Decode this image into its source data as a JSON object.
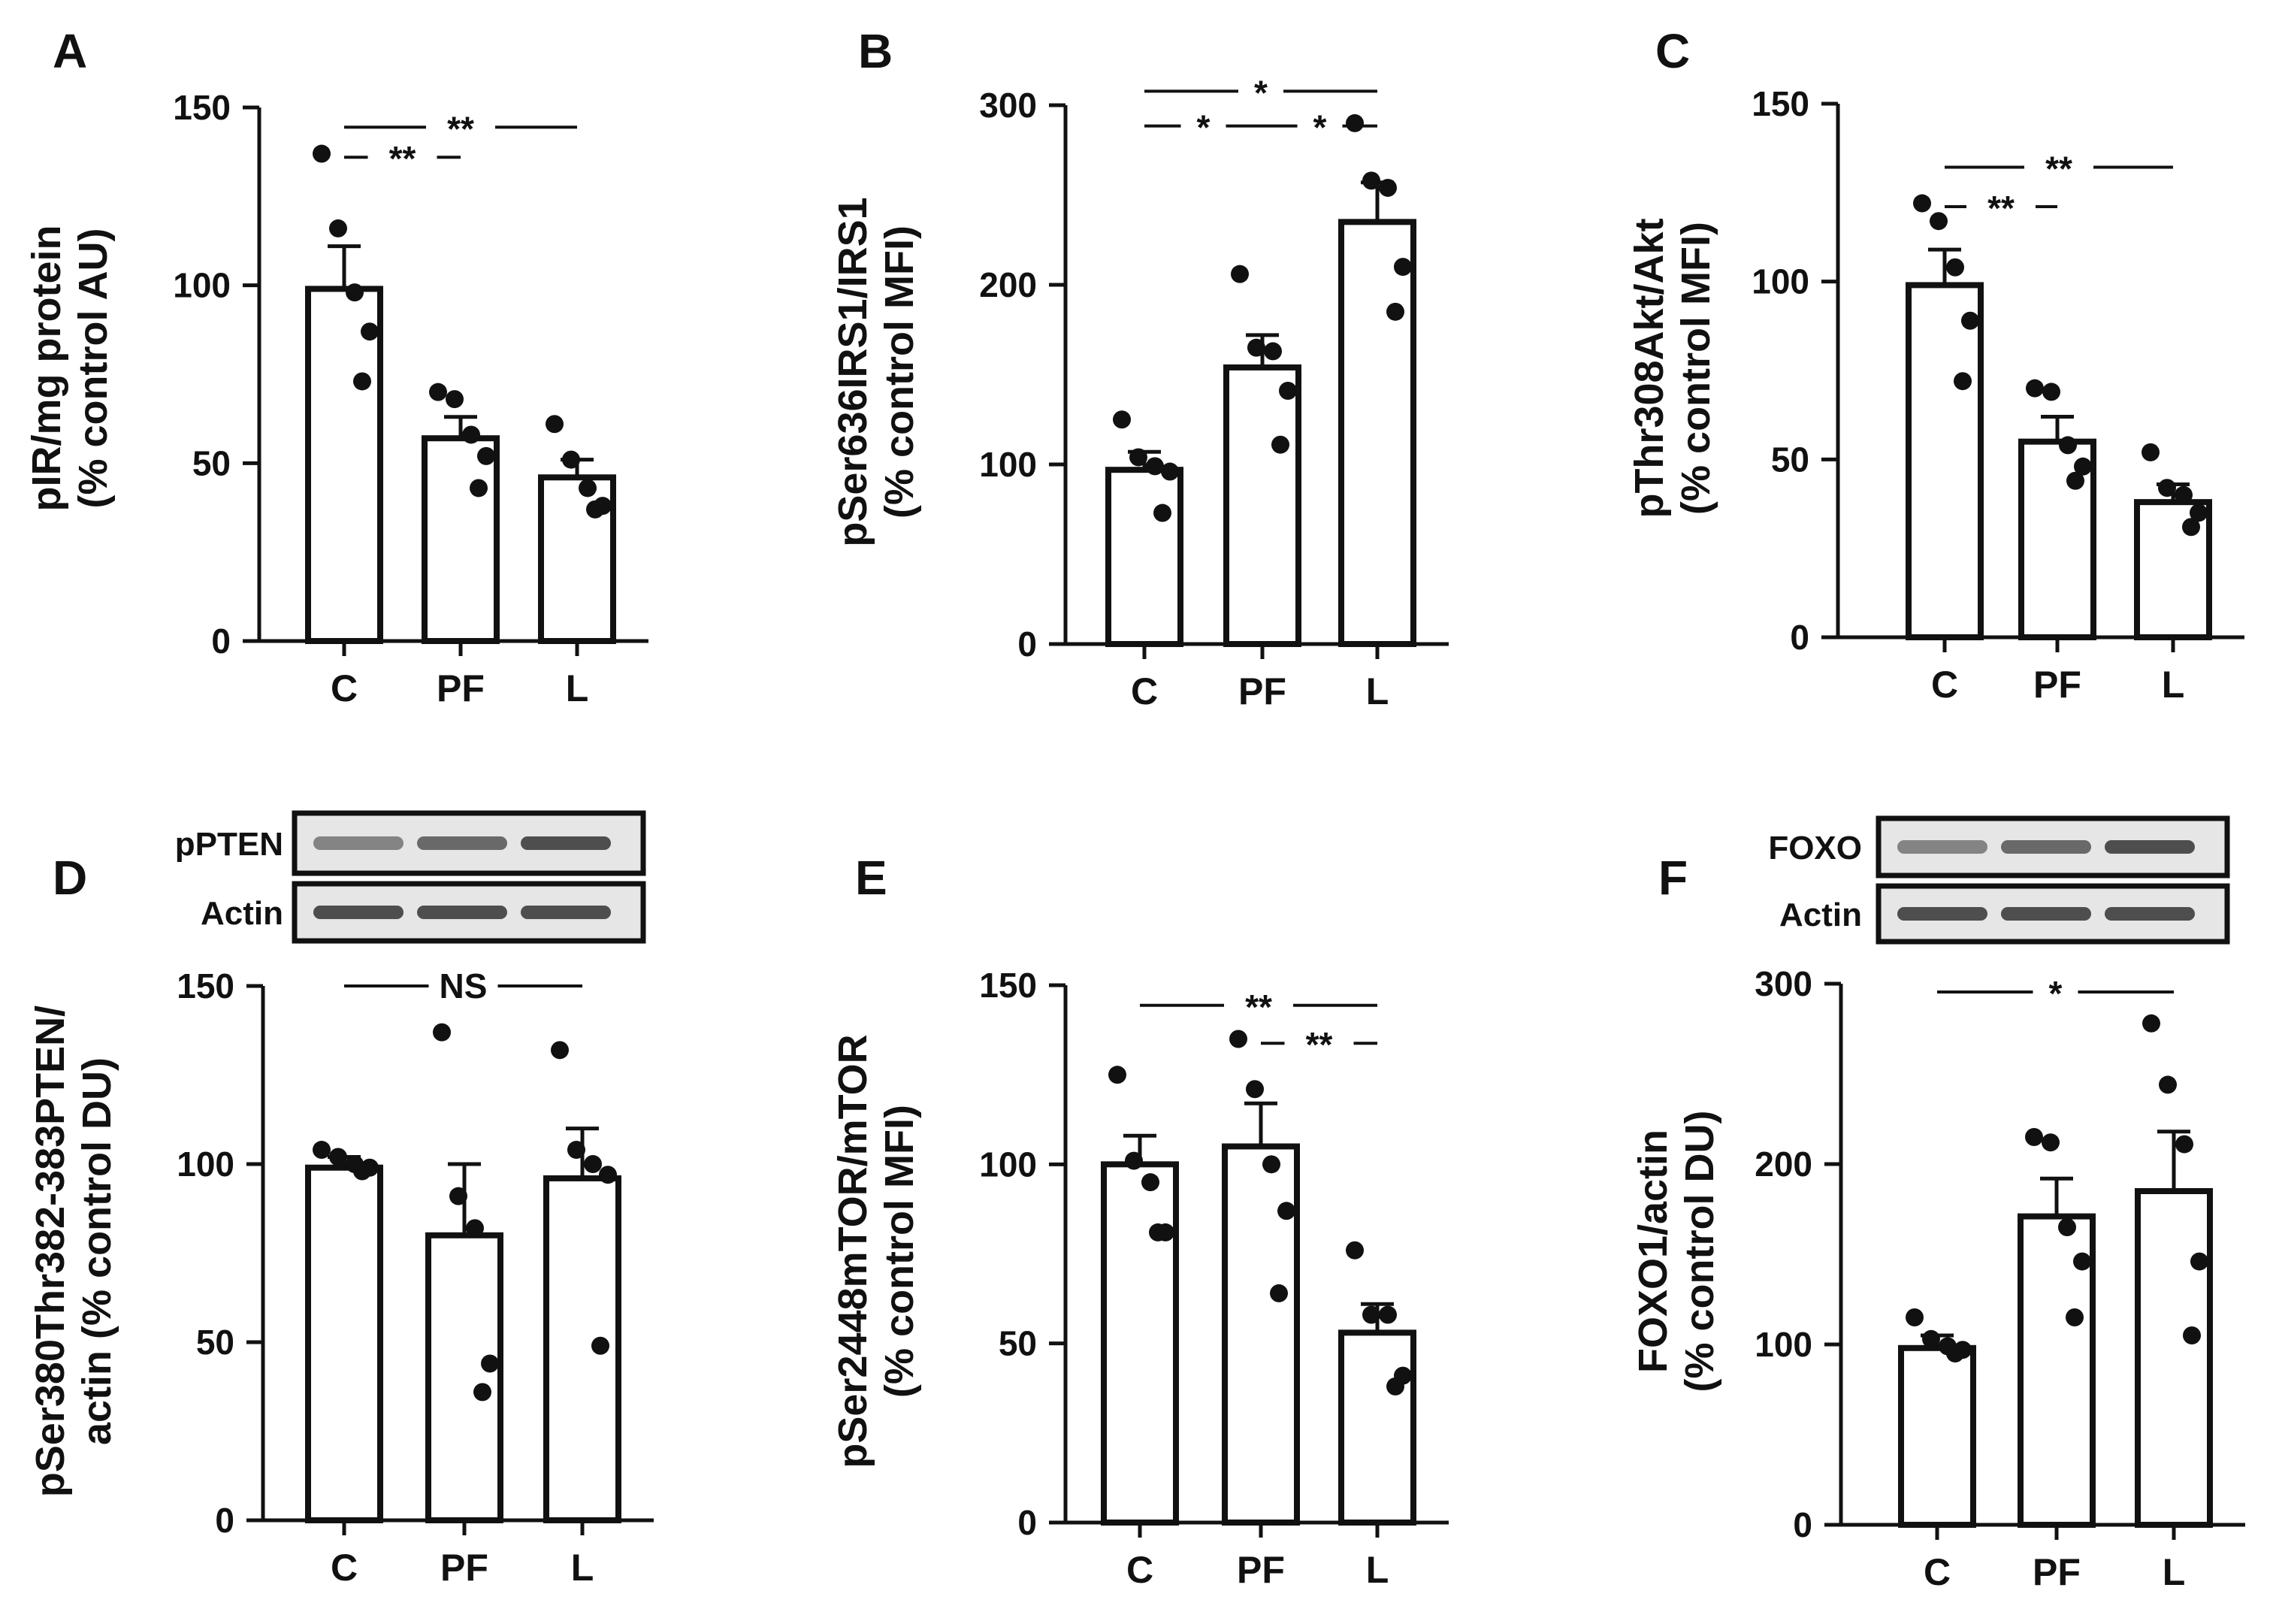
{
  "figure": {
    "panels": [
      "A",
      "B",
      "C",
      "D",
      "E",
      "F"
    ],
    "colors": {
      "ink": "#111111",
      "bar_fill": "#ffffff",
      "blot_bg": "#e6e6e6",
      "blot_band": "#333333"
    }
  },
  "chart_data": [
    {
      "panel": "A",
      "type": "bar",
      "ylabel_line1": "pIR/mg protein",
      "ylabel_line2": "(% control AU)",
      "categories": [
        "C",
        "PF",
        "L"
      ],
      "ylim": [
        0,
        150
      ],
      "yticks": [
        0,
        50,
        100,
        150
      ],
      "values": [
        99,
        57,
        46
      ],
      "errors": [
        12,
        6,
        5
      ],
      "points": [
        [
          137,
          116,
          98,
          87,
          73
        ],
        [
          70,
          68,
          58,
          52,
          43
        ],
        [
          61,
          51,
          43,
          38,
          37
        ]
      ],
      "significance": [
        {
          "label": "**",
          "from": 0,
          "to": 1,
          "level": 1
        },
        {
          "label": "**",
          "from": 0,
          "to": 2,
          "level": 2
        }
      ],
      "blot": null
    },
    {
      "panel": "B",
      "type": "bar",
      "ylabel_line1": "pSer636IRS1/IRS1",
      "ylabel_line2": "(% control MFI)",
      "categories": [
        "C",
        "PF",
        "L"
      ],
      "ylim": [
        0,
        300
      ],
      "yticks": [
        0,
        100,
        200,
        300
      ],
      "values": [
        97,
        154,
        235
      ],
      "errors": [
        10,
        18,
        22
      ],
      "points": [
        [
          125,
          104,
          99,
          96,
          73
        ],
        [
          206,
          165,
          163,
          141,
          111
        ],
        [
          290,
          258,
          254,
          210,
          185
        ]
      ],
      "significance": [
        {
          "label": "*",
          "from": 0,
          "to": 1,
          "level": 1
        },
        {
          "label": "*",
          "from": 1,
          "to": 2,
          "level": 1
        },
        {
          "label": "*",
          "from": 0,
          "to": 2,
          "level": 2
        }
      ],
      "blot": null
    },
    {
      "panel": "C",
      "type": "bar",
      "ylabel_line1": "pThr308Akt/Akt",
      "ylabel_line2": "(% control MFI)",
      "categories": [
        "C",
        "PF",
        "L"
      ],
      "ylim": [
        0,
        150
      ],
      "yticks": [
        0,
        50,
        100,
        150
      ],
      "values": [
        99,
        55,
        38
      ],
      "errors": [
        10,
        7,
        5
      ],
      "points": [
        [
          122,
          117,
          104,
          89,
          72
        ],
        [
          70,
          69,
          54,
          48,
          44
        ],
        [
          52,
          42,
          40,
          35,
          31
        ]
      ],
      "significance": [
        {
          "label": "**",
          "from": 0,
          "to": 1,
          "level": 1
        },
        {
          "label": "**",
          "from": 0,
          "to": 2,
          "level": 2
        }
      ],
      "blot": null
    },
    {
      "panel": "D",
      "type": "bar",
      "ylabel_line1": "pSer380Thr382-383PTEN/",
      "ylabel_line2": "actin (% control DU)",
      "categories": [
        "C",
        "PF",
        "L"
      ],
      "ylim": [
        0,
        150
      ],
      "yticks": [
        0,
        50,
        100,
        150
      ],
      "values": [
        99,
        80,
        96
      ],
      "errors": [
        3,
        20,
        14
      ],
      "points": [
        [
          104,
          102,
          100,
          99,
          98
        ],
        [
          137,
          91,
          82,
          44,
          36
        ],
        [
          132,
          104,
          100,
          97,
          49
        ]
      ],
      "significance": [
        {
          "label": "NS",
          "from": 0,
          "to": 2,
          "level": 1
        }
      ],
      "blot": {
        "rows": [
          "pPTEN",
          "Actin"
        ]
      }
    },
    {
      "panel": "E",
      "type": "bar",
      "ylabel_line1": "pSer2448mTOR/mTOR",
      "ylabel_line2": "(% control MFI)",
      "categories": [
        "C",
        "PF",
        "L"
      ],
      "ylim": [
        0,
        150
      ],
      "yticks": [
        0,
        50,
        100,
        150
      ],
      "values": [
        100,
        105,
        53
      ],
      "errors": [
        8,
        12,
        8
      ],
      "points": [
        [
          125,
          101,
          95,
          81,
          81
        ],
        [
          135,
          121,
          100,
          87,
          64
        ],
        [
          76,
          58,
          58,
          41,
          38
        ]
      ],
      "significance": [
        {
          "label": "**",
          "from": 1,
          "to": 2,
          "level": 1
        },
        {
          "label": "**",
          "from": 0,
          "to": 2,
          "level": 2
        }
      ],
      "blot": null
    },
    {
      "panel": "F",
      "type": "bar",
      "ylabel_line1": "FOXO1/actin",
      "ylabel_line2": "(% control DU)",
      "categories": [
        "C",
        "PF",
        "L"
      ],
      "ylim": [
        0,
        300
      ],
      "yticks": [
        0,
        100,
        200,
        300
      ],
      "values": [
        98,
        171,
        185
      ],
      "errors": [
        7,
        21,
        33
      ],
      "points": [
        [
          115,
          103,
          99,
          97,
          95
        ],
        [
          215,
          212,
          165,
          146,
          115
        ],
        [
          278,
          244,
          211,
          146,
          105
        ]
      ],
      "significance": [
        {
          "label": "*",
          "from": 0,
          "to": 2,
          "level": 1
        }
      ],
      "blot": {
        "rows": [
          "FOXO",
          "Actin"
        ]
      }
    }
  ]
}
